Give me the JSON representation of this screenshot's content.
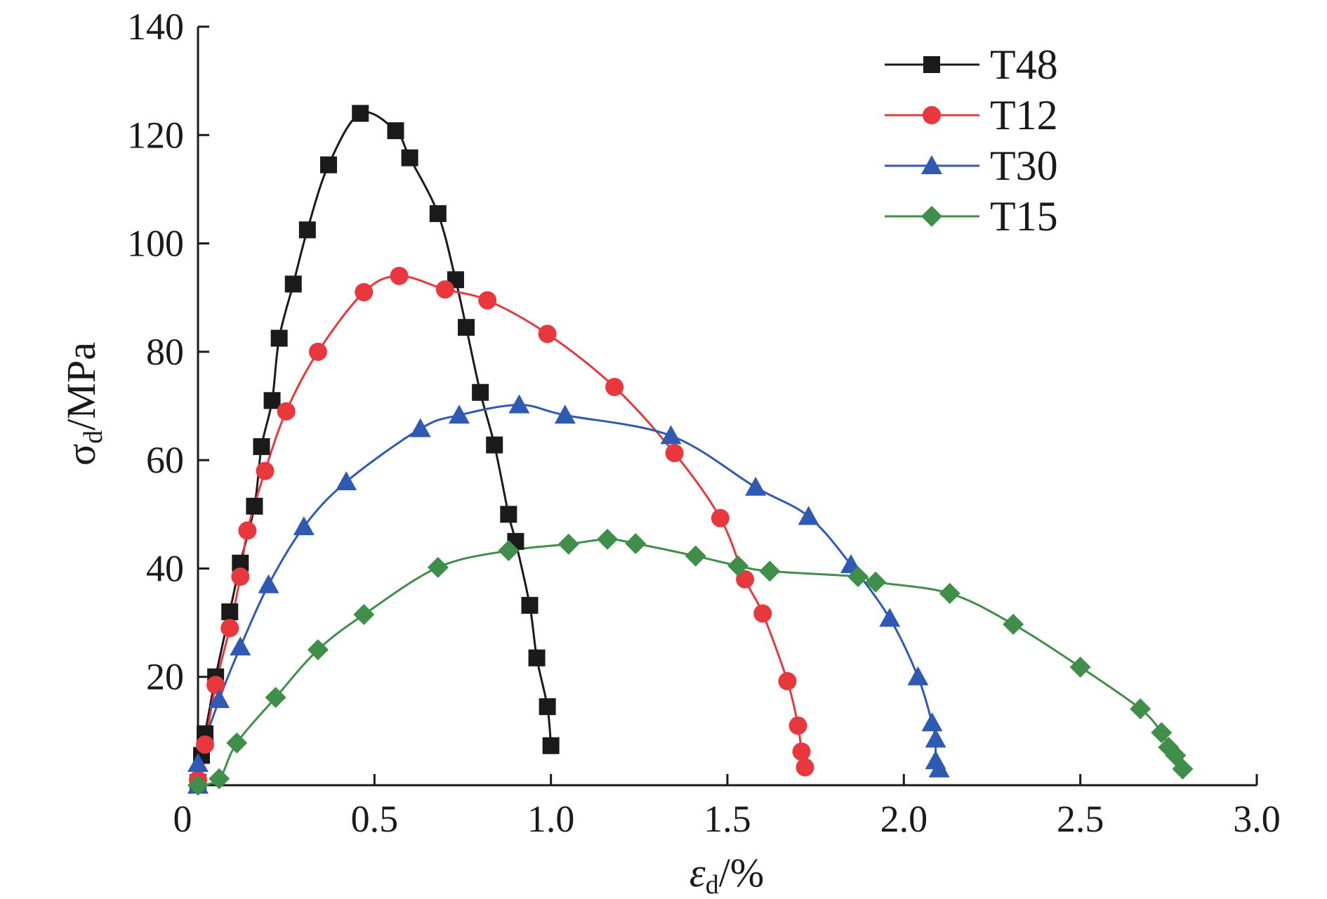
{
  "chart_data": {
    "type": "line",
    "title": "",
    "xlabel": {
      "base": "ε",
      "sub": "d",
      "suffix": "/%"
    },
    "ylabel": {
      "base": "σ",
      "sub": "d",
      "suffix": "/MPa"
    },
    "xlim": [
      0,
      3.0
    ],
    "ylim": [
      0,
      140
    ],
    "xticks": [
      0,
      0.5,
      1.0,
      1.5,
      2.0,
      2.5,
      3.0
    ],
    "xtick_labels": [
      "0",
      "0.5",
      "1.0",
      "1.5",
      "2.0",
      "2.5",
      "3.0"
    ],
    "yticks": [
      20,
      40,
      60,
      80,
      100,
      120,
      140
    ],
    "ytick_labels": [
      "20",
      "40",
      "60",
      "80",
      "100",
      "120",
      "140"
    ],
    "grid": false,
    "legend_position": "top-right",
    "series": [
      {
        "name": "T48",
        "color": "#1a1a1a",
        "marker": "square",
        "x": [
          0.0,
          0.01,
          0.02,
          0.05,
          0.09,
          0.12,
          0.16,
          0.18,
          0.21,
          0.23,
          0.27,
          0.31,
          0.37,
          0.46,
          0.56,
          0.6,
          0.68,
          0.73,
          0.76,
          0.8,
          0.84,
          0.88,
          0.9,
          0.94,
          0.96,
          0.99,
          1.0
        ],
        "y": [
          0.5,
          5.5,
          9.5,
          20,
          32,
          41,
          51.5,
          62.5,
          71,
          82.5,
          92.5,
          102.5,
          114.5,
          124,
          120.8,
          115.8,
          105.5,
          93.3,
          84.5,
          72.5,
          62.8,
          50,
          45,
          33.2,
          23.5,
          14.5,
          7.3
        ]
      },
      {
        "name": "T12",
        "color": "#e8383d",
        "marker": "circle",
        "x": [
          0.0,
          0.02,
          0.05,
          0.09,
          0.12,
          0.14,
          0.19,
          0.25,
          0.34,
          0.47,
          0.57,
          0.7,
          0.82,
          0.99,
          1.18,
          1.35,
          1.48,
          1.55,
          1.6,
          1.67,
          1.7,
          1.71,
          1.72
        ],
        "y": [
          1,
          7.5,
          18.5,
          29,
          38.5,
          47,
          58,
          69,
          80,
          91,
          94,
          91.5,
          89.5,
          83.3,
          73.5,
          61.3,
          49.3,
          38,
          31.7,
          19.2,
          11,
          6.2,
          3.3
        ]
      },
      {
        "name": "T30",
        "color": "#2f5ab4",
        "marker": "triangle",
        "x": [
          0.0,
          0.0,
          0.06,
          0.12,
          0.2,
          0.3,
          0.42,
          0.63,
          0.74,
          0.91,
          1.04,
          1.34,
          1.58,
          1.73,
          1.85,
          1.96,
          2.04,
          2.08,
          2.09,
          2.09,
          2.1
        ],
        "y": [
          0,
          4,
          15.8,
          25.5,
          37,
          47.7,
          56,
          65.8,
          68.3,
          70.2,
          68.3,
          64.5,
          55,
          49.6,
          40.7,
          30.8,
          20,
          11.5,
          8.5,
          4.5,
          3
        ]
      },
      {
        "name": "T15",
        "color": "#3f8e4a",
        "marker": "diamond",
        "x": [
          0.0,
          0.06,
          0.11,
          0.22,
          0.34,
          0.47,
          0.68,
          0.88,
          1.05,
          1.16,
          1.24,
          1.41,
          1.53,
          1.62,
          1.87,
          1.92,
          2.13,
          2.31,
          2.5,
          2.67,
          2.73,
          2.75,
          2.77,
          2.79
        ],
        "y": [
          0,
          1.2,
          7.8,
          16.2,
          25,
          31.5,
          40.2,
          43.3,
          44.5,
          45.4,
          44.6,
          42.3,
          40.5,
          39.5,
          38.5,
          37.5,
          35.4,
          29.7,
          21.8,
          14.1,
          9.7,
          7,
          5.5,
          3
        ]
      }
    ]
  }
}
